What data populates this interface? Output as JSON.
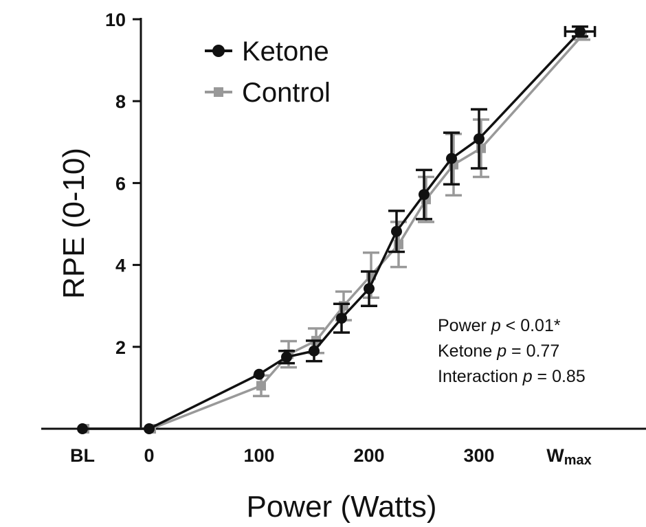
{
  "chart_data": {
    "type": "line",
    "title": "",
    "xlabel": "Power (Watts)",
    "ylabel": "RPE (0-10)",
    "ylim": [
      0,
      10
    ],
    "yticks": [
      2,
      4,
      6,
      8,
      10
    ],
    "x_ticks": [
      {
        "label": "BL",
        "x": -100
      },
      {
        "label": "0",
        "x": 0
      },
      {
        "label": "100",
        "x": 100
      },
      {
        "label": "200",
        "x": 200
      },
      {
        "label": "300",
        "x": 300
      },
      {
        "label": "W",
        "sub": "max",
        "x": 390
      }
    ],
    "series": [
      {
        "name": "Ketone",
        "color": "#111111",
        "marker": "circle",
        "points": [
          {
            "x": -100,
            "y": 0.0,
            "err": 0
          },
          {
            "x": 0,
            "y": 0.0,
            "err": 0
          },
          {
            "x": 100,
            "y": 1.33,
            "err": 0
          },
          {
            "x": 125,
            "y": 1.75,
            "err": 0.15
          },
          {
            "x": 150,
            "y": 1.9,
            "err": 0.25
          },
          {
            "x": 175,
            "y": 2.7,
            "err": 0.35
          },
          {
            "x": 200,
            "y": 3.42,
            "err": 0.42
          },
          {
            "x": 225,
            "y": 4.82,
            "err": 0.5
          },
          {
            "x": 250,
            "y": 5.72,
            "err": 0.6
          },
          {
            "x": 275,
            "y": 6.6,
            "err": 0.63
          },
          {
            "x": 300,
            "y": 7.08,
            "err": 0.72
          },
          {
            "x": 390,
            "y": 9.7,
            "err": 0.12,
            "xerr": 12
          }
        ]
      },
      {
        "name": "Control",
        "color": "#999999",
        "marker": "square",
        "points": [
          {
            "x": -100,
            "y": 0.0,
            "err": 0
          },
          {
            "x": 0,
            "y": 0.0,
            "err": 0
          },
          {
            "x": 100,
            "y": 1.05,
            "err": 0.25
          },
          {
            "x": 125,
            "y": 1.82,
            "err": 0.32
          },
          {
            "x": 150,
            "y": 2.15,
            "err": 0.3
          },
          {
            "x": 175,
            "y": 3.0,
            "err": 0.35
          },
          {
            "x": 200,
            "y": 3.75,
            "err": 0.55
          },
          {
            "x": 225,
            "y": 4.5,
            "err": 0.55
          },
          {
            "x": 250,
            "y": 5.6,
            "err": 0.55
          },
          {
            "x": 275,
            "y": 6.45,
            "err": 0.75
          },
          {
            "x": 300,
            "y": 6.85,
            "err": 0.7
          },
          {
            "x": 390,
            "y": 9.6,
            "err": 0.1
          }
        ]
      }
    ],
    "legend": {
      "position": "top-left",
      "entries": [
        "Ketone",
        "Control"
      ]
    },
    "annotations": [
      {
        "prefix": "Power ",
        "p": "p",
        "suffix": " < 0.01*"
      },
      {
        "prefix": "Ketone ",
        "p": "p",
        "suffix": " = 0.77"
      },
      {
        "prefix": "Interaction ",
        "p": "p",
        "suffix": " = 0.85"
      }
    ]
  }
}
